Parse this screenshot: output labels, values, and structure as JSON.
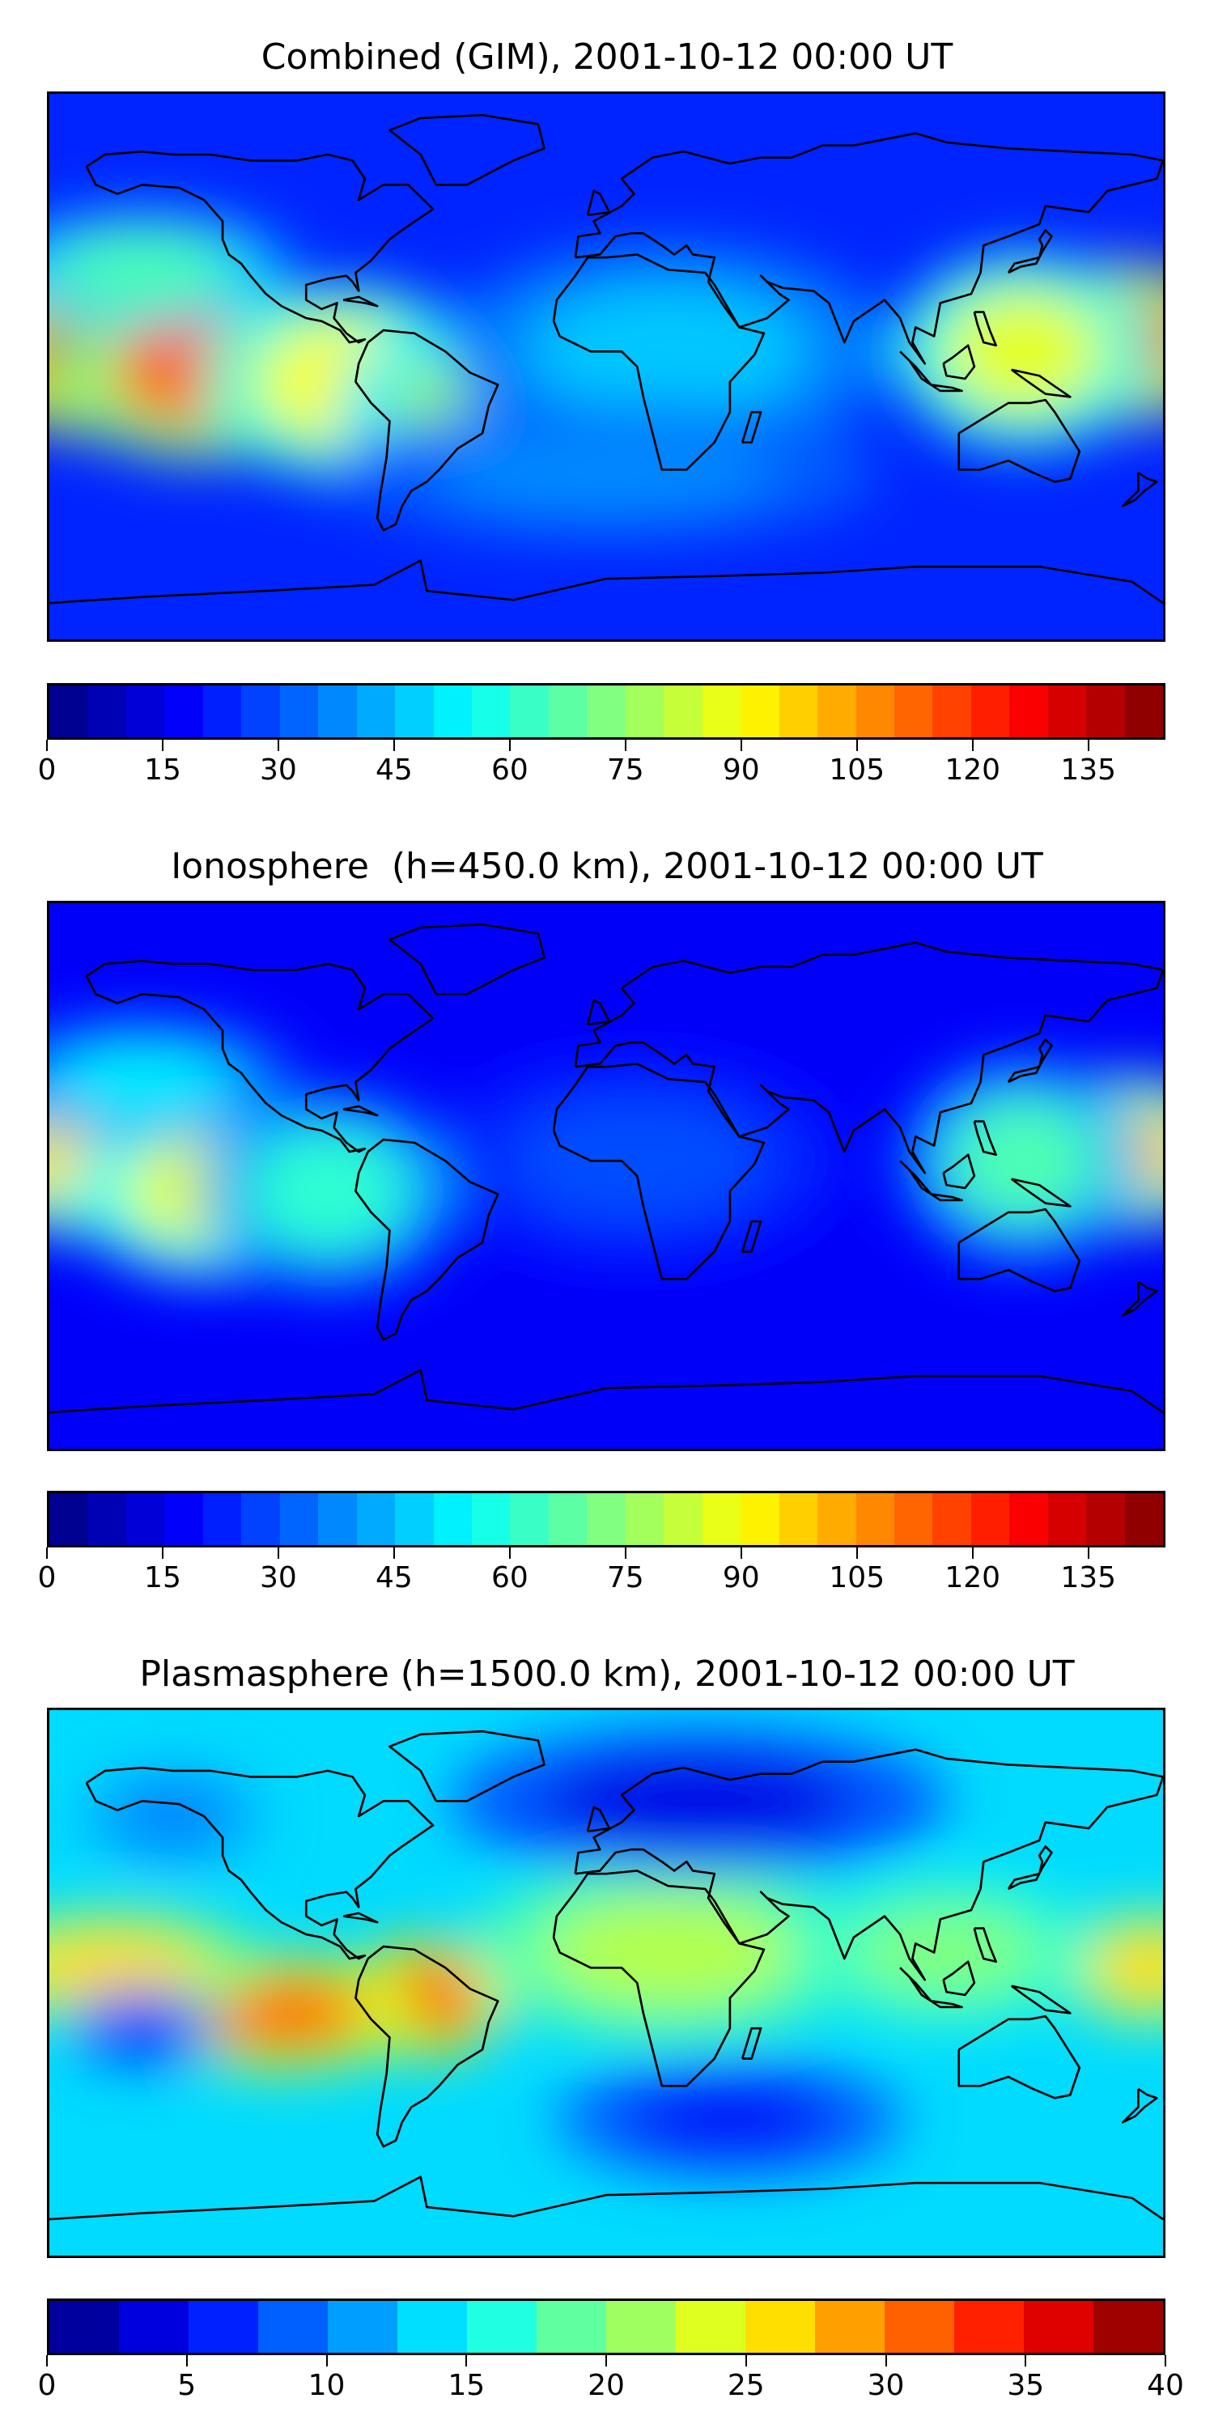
{
  "panels": [
    {
      "title": "Combined (GIM), 2001-10-12 00:00 UT",
      "colorbar": {
        "min": 0,
        "max": 145,
        "levels": 29,
        "ticks": [
          "0",
          "15",
          "30",
          "45",
          "60",
          "75",
          "90",
          "105",
          "120",
          "135"
        ],
        "tick_values": [
          0,
          15,
          30,
          45,
          60,
          75,
          90,
          105,
          120,
          135
        ]
      },
      "colormap": "jet",
      "background_level": 0.16,
      "blobs": [
        {
          "lon": -162,
          "lat": 3,
          "level": 0.93,
          "rlon": 28,
          "rlat": 16
        },
        {
          "lon": -130,
          "lat": -2,
          "level": 0.78,
          "rlon": 30,
          "rlat": 18
        },
        {
          "lon": -85,
          "lat": -5,
          "level": 0.62,
          "rlon": 28,
          "rlat": 20
        },
        {
          "lon": -45,
          "lat": -12,
          "level": 0.52,
          "rlon": 26,
          "rlat": 16
        },
        {
          "lon": 165,
          "lat": 8,
          "level": 0.9,
          "rlon": 26,
          "rlat": 16
        },
        {
          "lon": 135,
          "lat": 5,
          "level": 0.6,
          "rlon": 26,
          "rlat": 20
        },
        {
          "lon": -150,
          "lat": 32,
          "level": 0.45,
          "rlon": 30,
          "rlat": 12
        },
        {
          "lon": 20,
          "lat": 5,
          "level": 0.32,
          "rlon": 45,
          "rlat": 22
        },
        {
          "lon": 0,
          "lat": -35,
          "level": 0.26,
          "rlon": 55,
          "rlat": 14
        }
      ]
    },
    {
      "title": "Ionosphere  (h=450.0 km), 2001-10-12 00:00 UT",
      "colorbar": {
        "min": 0,
        "max": 145,
        "levels": 29,
        "ticks": [
          "0",
          "15",
          "30",
          "45",
          "60",
          "75",
          "90",
          "105",
          "120",
          "135"
        ],
        "tick_values": [
          0,
          15,
          30,
          45,
          60,
          75,
          90,
          105,
          120,
          135
        ]
      },
      "colormap": "jet",
      "background_level": 0.12,
      "blobs": [
        {
          "lon": -165,
          "lat": 5,
          "level": 0.66,
          "rlon": 28,
          "rlat": 16
        },
        {
          "lon": -128,
          "lat": -5,
          "level": 0.6,
          "rlon": 28,
          "rlat": 18
        },
        {
          "lon": -90,
          "lat": -5,
          "level": 0.42,
          "rlon": 26,
          "rlat": 20
        },
        {
          "lon": 168,
          "lat": 8,
          "level": 0.68,
          "rlon": 24,
          "rlat": 16
        },
        {
          "lon": 135,
          "lat": 5,
          "level": 0.45,
          "rlon": 24,
          "rlat": 20
        },
        {
          "lon": -150,
          "lat": 32,
          "level": 0.36,
          "rlon": 30,
          "rlat": 12
        },
        {
          "lon": 10,
          "lat": 5,
          "level": 0.2,
          "rlon": 40,
          "rlat": 20
        }
      ]
    },
    {
      "title": "Plasmasphere (h=1500.0 km), 2001-10-12 00:00 UT",
      "colorbar": {
        "min": 0,
        "max": 40,
        "levels": 16,
        "ticks": [
          "0",
          "5",
          "10",
          "15",
          "20",
          "25",
          "30",
          "35",
          "40"
        ],
        "tick_values": [
          0,
          5,
          10,
          15,
          20,
          25,
          30,
          35,
          40
        ]
      },
      "colormap": "jet",
      "background_level": 0.34,
      "blobs": [
        {
          "lon": -58,
          "lat": -5,
          "level": 0.88,
          "rlon": 16,
          "rlat": 12
        },
        {
          "lon": -105,
          "lat": -10,
          "level": 0.78,
          "rlon": 28,
          "rlat": 12
        },
        {
          "lon": -160,
          "lat": 5,
          "level": 0.66,
          "rlon": 30,
          "rlat": 12
        },
        {
          "lon": 175,
          "lat": 5,
          "level": 0.66,
          "rlon": 18,
          "rlat": 12
        },
        {
          "lon": 20,
          "lat": 10,
          "level": 0.55,
          "rlon": 40,
          "rlat": 18
        },
        {
          "lon": 110,
          "lat": 10,
          "level": 0.5,
          "rlon": 30,
          "rlat": 15
        },
        {
          "lon": 40,
          "lat": -45,
          "level": 0.12,
          "rlon": 35,
          "rlat": 12
        },
        {
          "lon": 30,
          "lat": 60,
          "level": 0.1,
          "rlon": 50,
          "rlat": 15
        },
        {
          "lon": -150,
          "lat": -15,
          "level": 0.15,
          "rlon": 15,
          "rlat": 8
        },
        {
          "lon": -140,
          "lat": 55,
          "level": 0.25,
          "rlon": 18,
          "rlat": 10
        }
      ]
    }
  ]
}
